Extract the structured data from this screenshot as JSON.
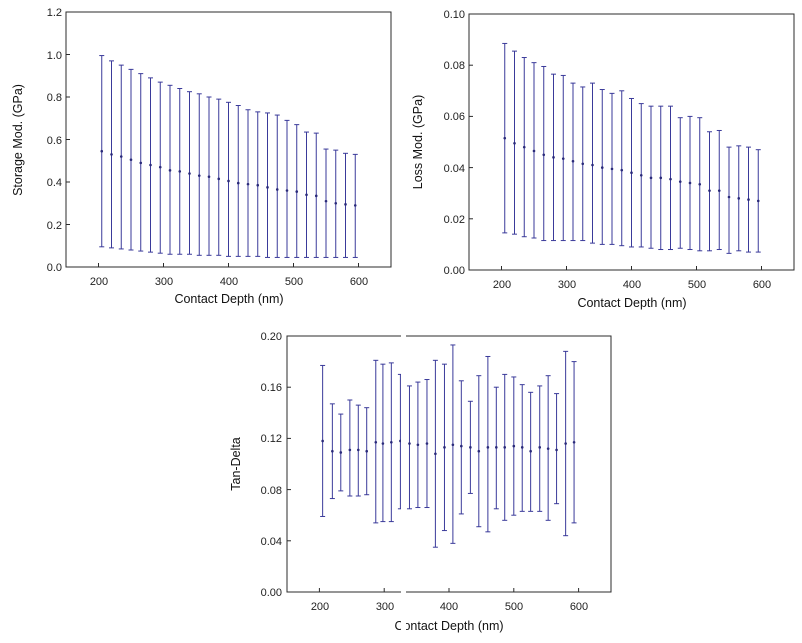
{
  "chart_data": [
    {
      "type": "scatter",
      "title": "",
      "xlabel": "Contact Depth (nm)",
      "ylabel": "Storage Mod. (GPa)",
      "xlim": [
        150,
        650
      ],
      "ylim": [
        0.0,
        1.2
      ],
      "xticks": [
        "200",
        "300",
        "400",
        "500",
        "600"
      ],
      "yticks": [
        "0.0",
        "0.2",
        "0.4",
        "0.6",
        "0.8",
        "1.0",
        "1.2"
      ],
      "grid": false,
      "legend": "none",
      "colors": {
        "marker": "#2a2a7a",
        "errorbar": "#3a3a9a"
      },
      "series": [
        {
          "x": [
            205,
            220,
            235,
            250,
            265,
            280,
            295,
            310,
            325,
            340,
            355,
            370,
            385,
            400,
            415,
            430,
            445,
            460,
            475,
            490,
            505,
            520,
            535,
            550,
            565,
            580,
            595
          ],
          "y": [
            0.545,
            0.53,
            0.52,
            0.505,
            0.49,
            0.48,
            0.47,
            0.455,
            0.45,
            0.44,
            0.43,
            0.425,
            0.415,
            0.405,
            0.395,
            0.39,
            0.385,
            0.375,
            0.365,
            0.36,
            0.355,
            0.34,
            0.335,
            0.31,
            0.3,
            0.295,
            0.29
          ],
          "y_upper": [
            0.995,
            0.97,
            0.95,
            0.93,
            0.91,
            0.89,
            0.87,
            0.855,
            0.84,
            0.825,
            0.815,
            0.8,
            0.79,
            0.775,
            0.76,
            0.74,
            0.73,
            0.725,
            0.715,
            0.69,
            0.67,
            0.635,
            0.63,
            0.555,
            0.55,
            0.535,
            0.53
          ],
          "y_lower": [
            0.095,
            0.09,
            0.085,
            0.08,
            0.075,
            0.07,
            0.065,
            0.06,
            0.06,
            0.06,
            0.055,
            0.055,
            0.055,
            0.05,
            0.05,
            0.05,
            0.05,
            0.045,
            0.045,
            0.045,
            0.045,
            0.045,
            0.045,
            0.045,
            0.045,
            0.045,
            0.045
          ]
        }
      ]
    },
    {
      "type": "scatter",
      "title": "",
      "xlabel": "Contact Depth (nm)",
      "ylabel": "Loss Mod. (GPa)",
      "xlim": [
        150,
        650
      ],
      "ylim": [
        0.0,
        0.1
      ],
      "xticks": [
        "200",
        "300",
        "400",
        "500",
        "600"
      ],
      "yticks": [
        "0.00",
        "0.02",
        "0.04",
        "0.06",
        "0.08",
        "0.10"
      ],
      "grid": false,
      "legend": "none",
      "colors": {
        "marker": "#2a2a7a",
        "errorbar": "#3a3a9a"
      },
      "series": [
        {
          "x": [
            205,
            220,
            235,
            250,
            265,
            280,
            295,
            310,
            325,
            340,
            355,
            370,
            385,
            400,
            415,
            430,
            445,
            460,
            475,
            490,
            505,
            520,
            535,
            550,
            565,
            580,
            595
          ],
          "y": [
            0.0515,
            0.0495,
            0.048,
            0.0465,
            0.045,
            0.044,
            0.0435,
            0.0425,
            0.0415,
            0.041,
            0.04,
            0.0395,
            0.039,
            0.038,
            0.037,
            0.036,
            0.036,
            0.0355,
            0.0345,
            0.034,
            0.0335,
            0.031,
            0.031,
            0.0285,
            0.028,
            0.0275,
            0.027
          ],
          "y_upper": [
            0.0885,
            0.0855,
            0.083,
            0.081,
            0.0795,
            0.0765,
            0.076,
            0.073,
            0.0715,
            0.073,
            0.0705,
            0.069,
            0.07,
            0.067,
            0.065,
            0.064,
            0.064,
            0.064,
            0.0595,
            0.06,
            0.0595,
            0.054,
            0.0545,
            0.048,
            0.0485,
            0.048,
            0.047
          ],
          "y_lower": [
            0.0145,
            0.014,
            0.013,
            0.0125,
            0.0115,
            0.0115,
            0.0115,
            0.0115,
            0.0115,
            0.0105,
            0.01,
            0.01,
            0.0095,
            0.009,
            0.009,
            0.0085,
            0.008,
            0.008,
            0.0085,
            0.008,
            0.0075,
            0.0075,
            0.008,
            0.0065,
            0.0075,
            0.007,
            0.007
          ]
        }
      ]
    },
    {
      "type": "scatter",
      "title": "",
      "xlabel": "Contact Depth (nm)",
      "ylabel": "Tan-Delta",
      "xlim": [
        150,
        650
      ],
      "ylim": [
        0.0,
        0.2
      ],
      "xticks": [
        "200",
        "300",
        "400",
        "500",
        "600"
      ],
      "yticks": [
        "0.00",
        "0.04",
        "0.08",
        "0.12",
        "0.16",
        "0.20"
      ],
      "grid": false,
      "legend": "none",
      "colors": {
        "marker": "#2a2a7a",
        "errorbar": "#3a3a9a"
      },
      "series": [
        {
          "x": [
            205,
            220,
            233,
            247,
            260,
            273,
            287,
            298,
            311,
            325,
            339,
            352,
            366,
            379,
            393,
            406,
            419,
            433,
            446,
            460,
            473,
            486,
            500,
            513,
            526,
            540,
            553,
            566,
            580,
            593
          ],
          "y": [
            0.118,
            0.11,
            0.109,
            0.111,
            0.111,
            0.11,
            0.117,
            0.116,
            0.117,
            0.118,
            0.116,
            0.115,
            0.116,
            0.108,
            0.113,
            0.115,
            0.114,
            0.113,
            0.11,
            0.113,
            0.113,
            0.113,
            0.114,
            0.113,
            0.11,
            0.113,
            0.112,
            0.111,
            0.116,
            0.117
          ],
          "y_upper": [
            0.177,
            0.147,
            0.139,
            0.15,
            0.146,
            0.144,
            0.181,
            0.178,
            0.179,
            0.17,
            0.161,
            0.164,
            0.166,
            0.181,
            0.178,
            0.193,
            0.165,
            0.149,
            0.169,
            0.184,
            0.16,
            0.17,
            0.168,
            0.162,
            0.156,
            0.161,
            0.169,
            0.155,
            0.188,
            0.18
          ],
          "y_lower": [
            0.059,
            0.073,
            0.079,
            0.075,
            0.075,
            0.076,
            0.054,
            0.055,
            0.055,
            0.065,
            0.065,
            0.066,
            0.066,
            0.035,
            0.048,
            0.038,
            0.061,
            0.077,
            0.051,
            0.047,
            0.065,
            0.056,
            0.06,
            0.063,
            0.063,
            0.063,
            0.056,
            0.069,
            0.044,
            0.054
          ]
        }
      ]
    }
  ]
}
